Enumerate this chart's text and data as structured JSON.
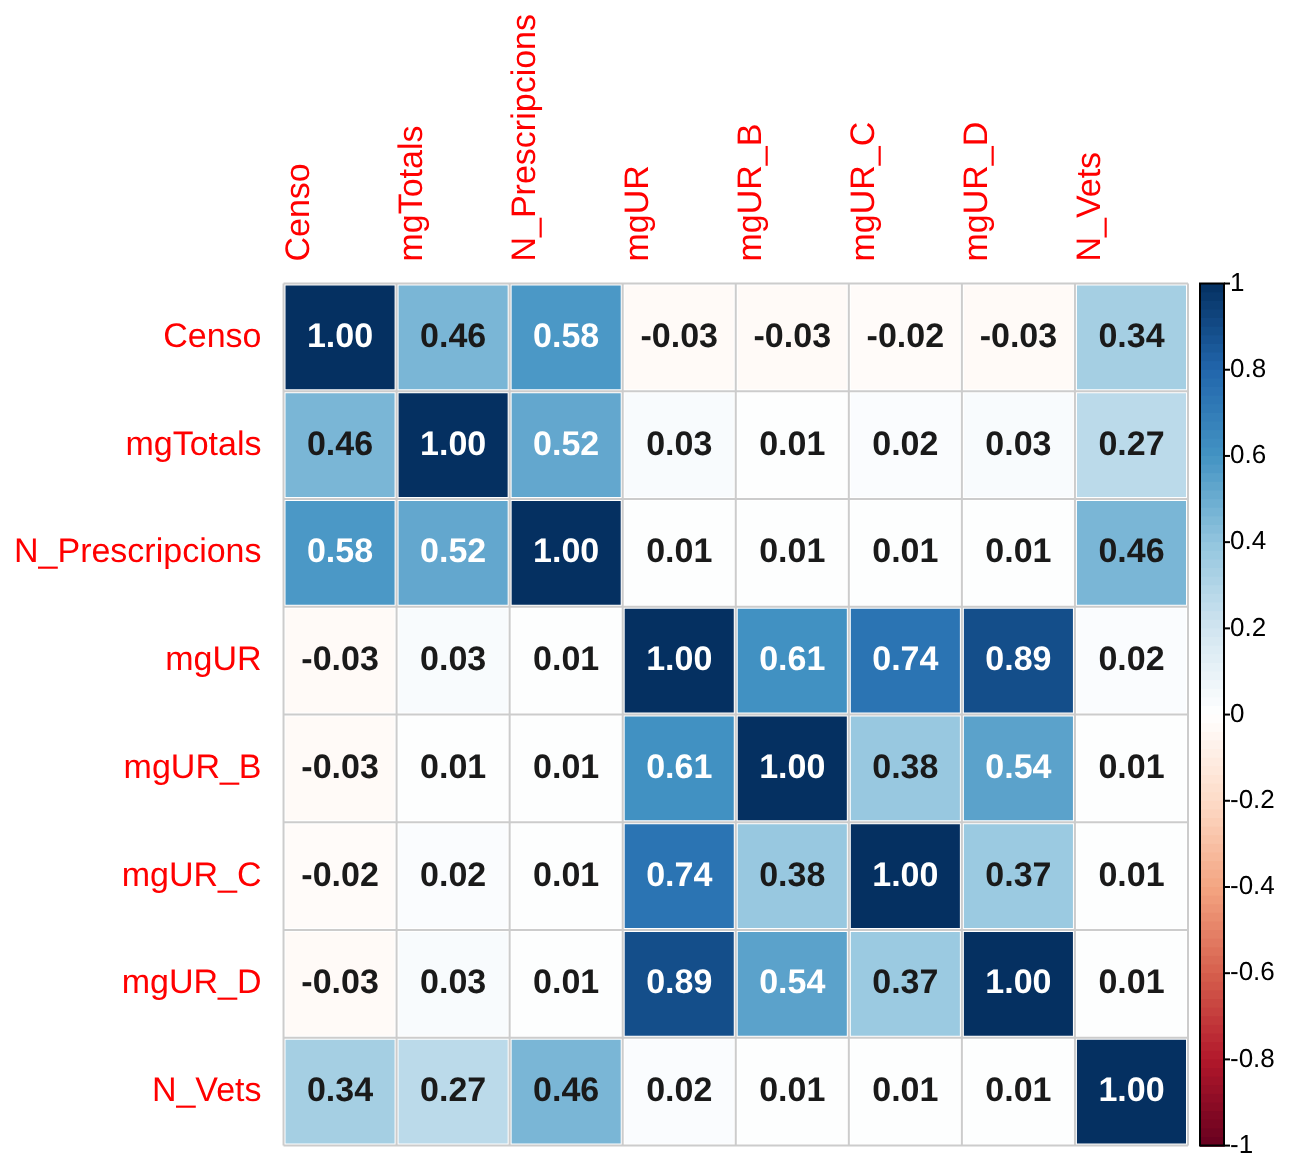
{
  "chart_data": {
    "type": "heatmap",
    "categories": [
      "Censo",
      "mgTotals",
      "N_Prescripcions",
      "mgUR",
      "mgUR_B",
      "mgUR_C",
      "mgUR_D",
      "N_Vets"
    ],
    "y_categories": [
      "Censo",
      "mgTotals",
      "N_Prescripcions",
      "mgUR",
      "mgUR_B",
      "mgUR_C",
      "mgUR_D",
      "N_Vets"
    ],
    "cells": [
      [
        1.0,
        0.46,
        0.58,
        -0.03,
        -0.03,
        -0.02,
        -0.03,
        0.34
      ],
      [
        0.46,
        1.0,
        0.52,
        0.03,
        0.01,
        0.02,
        0.03,
        0.27
      ],
      [
        0.58,
        0.52,
        1.0,
        0.01,
        0.01,
        0.01,
        0.01,
        0.46
      ],
      [
        -0.03,
        0.03,
        0.01,
        1.0,
        0.61,
        0.74,
        0.89,
        0.02
      ],
      [
        -0.03,
        0.01,
        0.01,
        0.61,
        1.0,
        0.38,
        0.54,
        0.01
      ],
      [
        -0.02,
        0.02,
        0.01,
        0.74,
        0.38,
        1.0,
        0.37,
        0.01
      ],
      [
        -0.03,
        0.03,
        0.01,
        0.89,
        0.54,
        0.37,
        1.0,
        0.01
      ],
      [
        0.34,
        0.27,
        0.46,
        0.02,
        0.01,
        0.01,
        0.01,
        1.0
      ]
    ],
    "cell_labels": [
      [
        "1.00",
        "0.46",
        "0.58",
        "-0.03",
        "-0.03",
        "-0.02",
        "-0.03",
        "0.34"
      ],
      [
        "0.46",
        "1.00",
        "0.52",
        "0.03",
        "0.01",
        "0.02",
        "0.03",
        "0.27"
      ],
      [
        "0.58",
        "0.52",
        "1.00",
        "0.01",
        "0.01",
        "0.01",
        "0.01",
        "0.46"
      ],
      [
        "-0.03",
        "0.03",
        "0.01",
        "1.00",
        "0.61",
        "0.74",
        "0.89",
        "0.02"
      ],
      [
        "-0.03",
        "0.01",
        "0.01",
        "0.61",
        "1.00",
        "0.38",
        "0.54",
        "0.01"
      ],
      [
        "-0.02",
        "0.02",
        "0.01",
        "0.74",
        "0.38",
        "1.00",
        "0.37",
        "0.01"
      ],
      [
        "-0.03",
        "0.03",
        "0.01",
        "0.89",
        "0.54",
        "0.37",
        "1.00",
        "0.01"
      ],
      [
        "0.34",
        "0.27",
        "0.46",
        "0.02",
        "0.01",
        "0.01",
        "0.01",
        "1.00"
      ]
    ],
    "clim": [
      -1,
      1
    ],
    "cticks": [
      1,
      0.8,
      0.6,
      0.4,
      0.2,
      0,
      -0.2,
      -0.4,
      -0.6,
      -0.8,
      -1
    ],
    "data_labels": true,
    "grid": true,
    "legend": false
  }
}
